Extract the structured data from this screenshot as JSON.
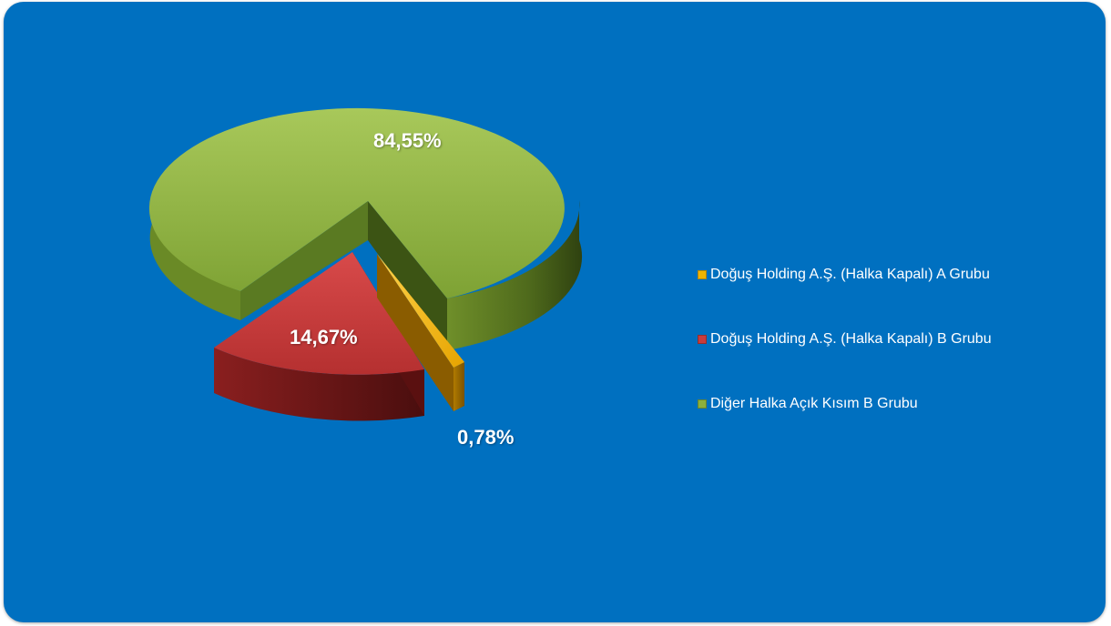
{
  "chart_data": {
    "type": "pie",
    "title": "",
    "slices": [
      {
        "label": "Doğuş Holding A.Ş. (Halka Kapalı) A Grubu",
        "value": 0.78,
        "value_label": "0,78%",
        "color": "#f0b400"
      },
      {
        "label": "Doğuş Holding A.Ş. (Halka Kapalı) B Grubu",
        "value": 14.67,
        "value_label": "14,67%",
        "color": "#c83c3c"
      },
      {
        "label": "Diğer Halka Açık Kısım B Grubu",
        "value": 84.55,
        "value_label": "84,55%",
        "color": "#8cb03c"
      }
    ],
    "legend_position": "right",
    "exploded": true,
    "style": "3d"
  },
  "colors": {
    "background": "#0070c0"
  }
}
